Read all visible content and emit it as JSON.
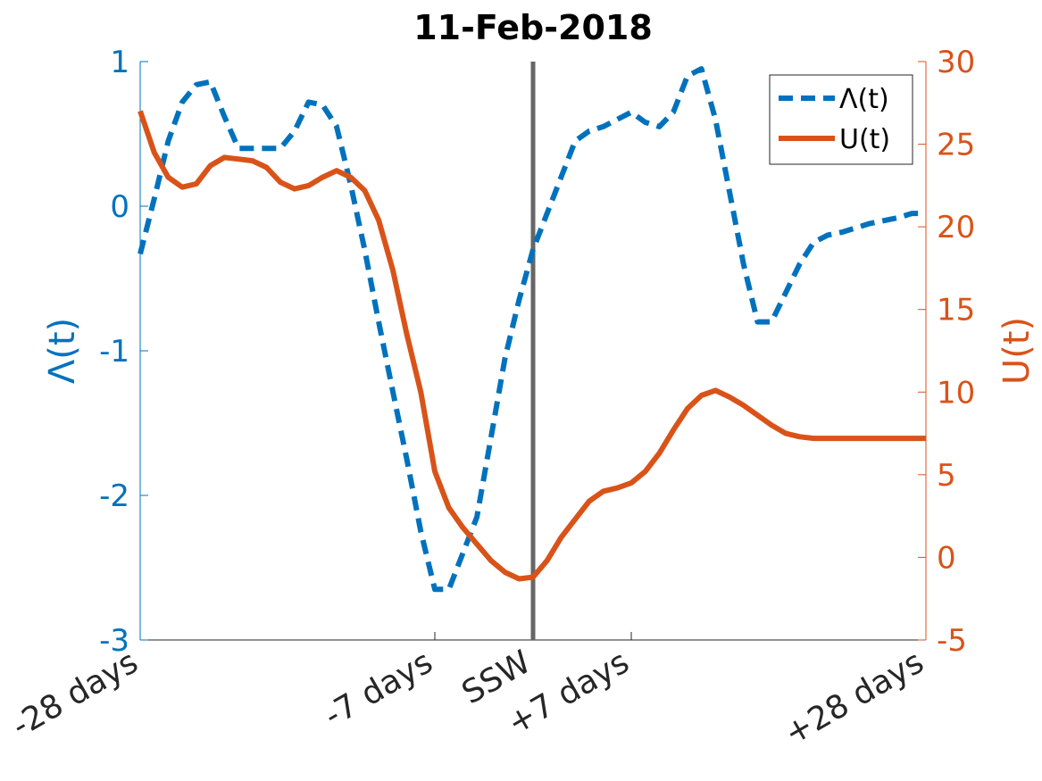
{
  "chart_data": {
    "type": "line",
    "title": "11-Feb-2018",
    "x": [
      -28,
      -27,
      -26,
      -25,
      -24,
      -23,
      -22,
      -21,
      -20,
      -19,
      -18,
      -17,
      -16,
      -15,
      -14,
      -13,
      -12,
      -11,
      -10,
      -9,
      -8,
      -7,
      -6,
      -5,
      -4,
      -3,
      -2,
      -1,
      0,
      1,
      2,
      3,
      4,
      5,
      6,
      7,
      8,
      9,
      10,
      11,
      12,
      13,
      14,
      15,
      16,
      17,
      18,
      19,
      20,
      21,
      22,
      23,
      24,
      25,
      26,
      27,
      28
    ],
    "xticks": [
      {
        "x": -28,
        "label": "-28 days"
      },
      {
        "x": -7,
        "label": "-7 days"
      },
      {
        "x": 0,
        "label": "SSW"
      },
      {
        "x": 7,
        "label": "+7 days"
      },
      {
        "x": 28,
        "label": "+28 days"
      }
    ],
    "xlim": [
      -28,
      28
    ],
    "event_line": {
      "x": 0,
      "color": "#666666"
    },
    "left_axis": {
      "label": "Λ(t)",
      "ylim": [
        -3,
        1
      ],
      "ticks": [
        1,
        0,
        -1,
        -2,
        -3
      ],
      "tick_labels": [
        "1",
        "0",
        "-1",
        "-2",
        "-3"
      ],
      "color": "#0072BD"
    },
    "right_axis": {
      "label": "U(t)",
      "ylim": [
        -5,
        30
      ],
      "ticks": [
        30,
        25,
        20,
        15,
        10,
        5,
        0,
        -5
      ],
      "tick_labels": [
        "30",
        "25",
        "20",
        "15",
        "10",
        "5",
        "0",
        "-5"
      ],
      "color": "#D95319"
    },
    "series": [
      {
        "name": "Λ(t)",
        "axis": "left",
        "style": "dashed",
        "color": "#0072BD",
        "values": [
          -0.33,
          0.05,
          0.45,
          0.72,
          0.84,
          0.86,
          0.62,
          0.4,
          0.4,
          0.4,
          0.4,
          0.52,
          0.72,
          0.7,
          0.55,
          0.15,
          -0.3,
          -0.8,
          -1.28,
          -1.75,
          -2.25,
          -2.65,
          -2.65,
          -2.4,
          -2.15,
          -1.6,
          -1.05,
          -0.65,
          -0.3,
          -0.05,
          0.2,
          0.45,
          0.52,
          0.55,
          0.6,
          0.65,
          0.58,
          0.55,
          0.65,
          0.9,
          0.95,
          0.6,
          0.1,
          -0.4,
          -0.8,
          -0.8,
          -0.6,
          -0.4,
          -0.25,
          -0.2,
          -0.18,
          -0.15,
          -0.12,
          -0.1,
          -0.08,
          -0.05,
          -0.05
        ]
      },
      {
        "name": "U(t)",
        "axis": "right",
        "style": "solid",
        "color": "#D95319",
        "values": [
          27,
          24.5,
          23,
          22.4,
          22.6,
          23.7,
          24.2,
          24.1,
          24,
          23.6,
          22.7,
          22.3,
          22.5,
          23,
          23.4,
          23,
          22.2,
          20.4,
          17.4,
          13.5,
          10,
          5.2,
          3,
          1.8,
          0.8,
          -0.2,
          -0.9,
          -1.3,
          -1.2,
          -0.2,
          1.2,
          2.3,
          3.4,
          4,
          4.2,
          4.5,
          5.2,
          6.3,
          7.7,
          9,
          9.8,
          10.1,
          9.7,
          9.2,
          8.6,
          8,
          7.5,
          7.3,
          7.2,
          7.2,
          7.2,
          7.2,
          7.2,
          7.2,
          7.2,
          7.2,
          7.2
        ]
      }
    ],
    "legend": {
      "placement": "top-right",
      "entries": [
        "Λ(t)",
        "U(t)"
      ]
    }
  }
}
